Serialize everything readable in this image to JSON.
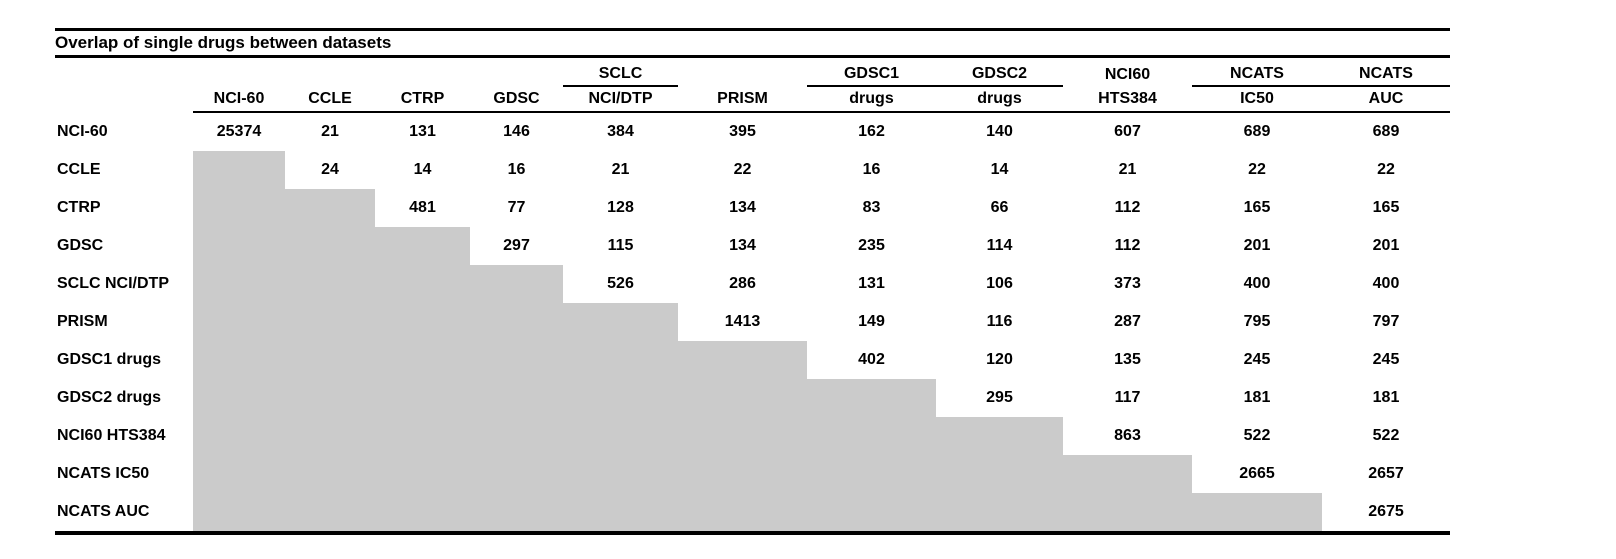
{
  "title": "Overlap of single drugs between datasets",
  "colors": {
    "empty_cell_gray": "#cbcbcb",
    "text": "#000000",
    "rule_lines": "#000000"
  },
  "header": {
    "line1": [
      "",
      "",
      "",
      "",
      "SCLC",
      "",
      "GDSC1",
      "GDSC2",
      "NCI60",
      "NCATS",
      "NCATS"
    ],
    "line2": [
      "NCI-60",
      "CCLE",
      "CTRP",
      "GDSC",
      "NCI/DTP",
      "PRISM",
      "drugs",
      "drugs",
      "HTS384",
      "IC50",
      "AUC"
    ],
    "underline_groups": [
      [
        4
      ],
      [
        6,
        7
      ],
      [
        9,
        10
      ]
    ]
  },
  "rows": [
    {
      "label": "NCI-60",
      "values": [
        "25374",
        "21",
        "131",
        "146",
        "384",
        "395",
        "162",
        "140",
        "607",
        "689",
        "689"
      ]
    },
    {
      "label": "CCLE",
      "values": [
        null,
        "24",
        "14",
        "16",
        "21",
        "22",
        "16",
        "14",
        "21",
        "22",
        "22"
      ]
    },
    {
      "label": "CTRP",
      "values": [
        null,
        null,
        "481",
        "77",
        "128",
        "134",
        "83",
        "66",
        "112",
        "165",
        "165"
      ]
    },
    {
      "label": "GDSC",
      "values": [
        null,
        null,
        null,
        "297",
        "115",
        "134",
        "235",
        "114",
        "112",
        "201",
        "201"
      ]
    },
    {
      "label": "SCLC NCI/DTP",
      "values": [
        null,
        null,
        null,
        null,
        "526",
        "286",
        "131",
        "106",
        "373",
        "400",
        "400"
      ]
    },
    {
      "label": "PRISM",
      "values": [
        null,
        null,
        null,
        null,
        null,
        "1413",
        "149",
        "116",
        "287",
        "795",
        "797"
      ]
    },
    {
      "label": "GDSC1 drugs",
      "values": [
        null,
        null,
        null,
        null,
        null,
        null,
        "402",
        "120",
        "135",
        "245",
        "245"
      ]
    },
    {
      "label": "GDSC2 drugs",
      "values": [
        null,
        null,
        null,
        null,
        null,
        null,
        null,
        "295",
        "117",
        "181",
        "181"
      ]
    },
    {
      "label": "NCI60 HTS384",
      "values": [
        null,
        null,
        null,
        null,
        null,
        null,
        null,
        null,
        "863",
        "522",
        "522"
      ]
    },
    {
      "label": "NCATS IC50",
      "values": [
        null,
        null,
        null,
        null,
        null,
        null,
        null,
        null,
        null,
        "2665",
        "2657"
      ]
    },
    {
      "label": "NCATS AUC",
      "values": [
        null,
        null,
        null,
        null,
        null,
        null,
        null,
        null,
        null,
        null,
        "2675"
      ]
    }
  ]
}
